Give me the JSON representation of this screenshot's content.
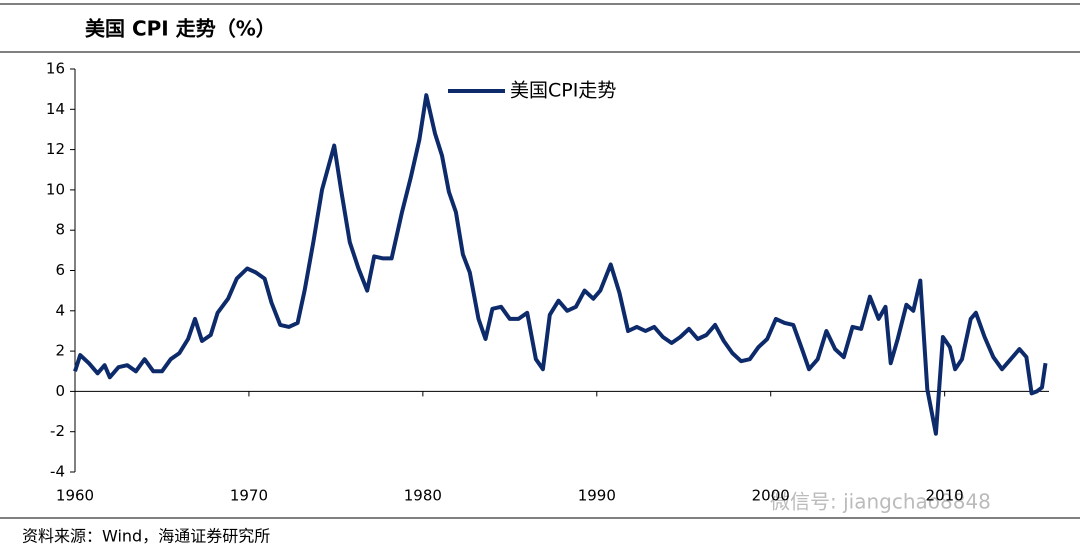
{
  "chart_data": {
    "type": "line",
    "title": "美国 CPI 走势（%）",
    "source": "资料来源：Wind，海通证券研究所",
    "watermark": "微信号: jiangchao8848",
    "x": [
      1960.0,
      1960.3,
      1960.8,
      1961.3,
      1961.7,
      1962.0,
      1962.5,
      1963.0,
      1963.5,
      1964.0,
      1964.5,
      1965.0,
      1965.5,
      1966.0,
      1966.5,
      1966.9,
      1967.3,
      1967.8,
      1968.2,
      1968.8,
      1969.3,
      1969.9,
      1970.4,
      1970.9,
      1971.3,
      1971.8,
      1972.3,
      1972.8,
      1973.2,
      1973.7,
      1974.2,
      1974.9,
      1975.3,
      1975.8,
      1976.3,
      1976.8,
      1977.2,
      1977.7,
      1978.2,
      1978.8,
      1979.3,
      1979.8,
      1980.2,
      1980.7,
      1981.1,
      1981.5,
      1981.9,
      1982.3,
      1982.7,
      1983.2,
      1983.6,
      1984.0,
      1984.5,
      1985.0,
      1985.5,
      1986.0,
      1986.5,
      1986.9,
      1987.3,
      1987.8,
      1988.3,
      1988.8,
      1989.3,
      1989.8,
      1990.2,
      1990.8,
      1991.3,
      1991.8,
      1992.3,
      1992.8,
      1993.3,
      1993.8,
      1994.3,
      1994.8,
      1995.3,
      1995.8,
      1996.3,
      1996.8,
      1997.3,
      1997.8,
      1998.3,
      1998.8,
      1999.3,
      1999.8,
      2000.3,
      2000.8,
      2001.3,
      2001.8,
      2002.2,
      2002.7,
      2003.2,
      2003.7,
      2004.2,
      2004.7,
      2005.2,
      2005.7,
      2006.2,
      2006.6,
      2006.9,
      2007.3,
      2007.8,
      2008.2,
      2008.6,
      2009.0,
      2009.5,
      2009.9,
      2010.3,
      2010.6,
      2011.0,
      2011.5,
      2011.8,
      2012.3,
      2012.8,
      2013.3,
      2013.7,
      2014.3,
      2014.7,
      2015.0,
      2015.3,
      2015.6,
      2015.8
    ],
    "series": [
      {
        "name": "美国CPI走势",
        "color": "#0d2a6b",
        "values": [
          1.0,
          1.8,
          1.4,
          0.9,
          1.3,
          0.7,
          1.2,
          1.3,
          1.0,
          1.6,
          1.0,
          1.0,
          1.6,
          1.9,
          2.6,
          3.6,
          2.5,
          2.8,
          3.9,
          4.6,
          5.6,
          6.1,
          5.9,
          5.6,
          4.4,
          3.3,
          3.2,
          3.4,
          5.0,
          7.4,
          10.0,
          12.2,
          10.0,
          7.4,
          6.1,
          5.0,
          6.7,
          6.6,
          6.6,
          8.9,
          10.6,
          12.5,
          14.7,
          12.8,
          11.7,
          9.9,
          8.9,
          6.8,
          5.9,
          3.6,
          2.6,
          4.1,
          4.2,
          3.6,
          3.6,
          3.9,
          1.6,
          1.1,
          3.8,
          4.5,
          4.0,
          4.2,
          5.0,
          4.6,
          5.0,
          6.3,
          4.9,
          3.0,
          3.2,
          3.0,
          3.2,
          2.7,
          2.4,
          2.7,
          3.1,
          2.6,
          2.8,
          3.3,
          2.5,
          1.9,
          1.5,
          1.6,
          2.2,
          2.6,
          3.6,
          3.4,
          3.3,
          2.1,
          1.1,
          1.6,
          3.0,
          2.1,
          1.7,
          3.2,
          3.1,
          4.7,
          3.6,
          4.2,
          1.4,
          2.6,
          4.3,
          4.0,
          5.5,
          0.1,
          -2.1,
          2.7,
          2.2,
          1.1,
          1.6,
          3.6,
          3.9,
          2.7,
          1.7,
          1.1,
          1.5,
          2.1,
          1.7,
          -0.1,
          0.0,
          0.2,
          1.4
        ]
      }
    ],
    "xlim": [
      1960,
      2016
    ],
    "xticks": [
      1960,
      1970,
      1980,
      1990,
      2000,
      2010
    ],
    "ylim": [
      -4,
      16
    ],
    "yticks": [
      -4,
      -2,
      0,
      2,
      4,
      6,
      8,
      10,
      12,
      14,
      16
    ]
  }
}
